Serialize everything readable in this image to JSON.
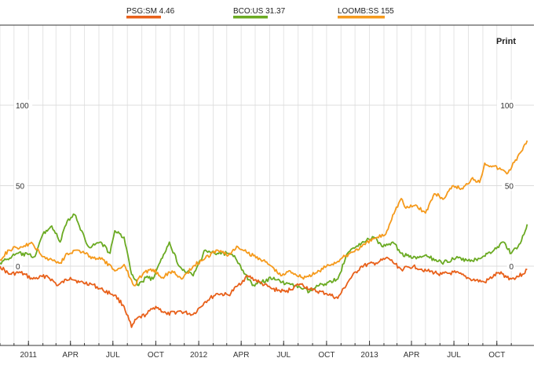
{
  "legend": [
    {
      "ticker": "PSG:SM",
      "value": "4.46",
      "color": "#e8601a"
    },
    {
      "ticker": "BCO:US",
      "value": "31.37",
      "color": "#6aaa22"
    },
    {
      "ticker": "LOOMB:SS",
      "value": "155",
      "color": "#f59a1c"
    }
  ],
  "print_label": "Print",
  "chart_data": {
    "type": "line",
    "ylim": [
      -50,
      140
    ],
    "y_ticks_left": [
      100,
      50,
      0
    ],
    "y_ticks_right": [
      100,
      50,
      0
    ],
    "x_ticks": [
      "2011",
      "APR",
      "JUL",
      "OCT",
      "2012",
      "APR",
      "JUL",
      "OCT",
      "2013",
      "APR",
      "JUL",
      "OCT"
    ],
    "grid": true,
    "x_start": "2010-11",
    "x_end": "2013-12",
    "series": [
      {
        "name": "PSG:SM",
        "color": "#e8601a",
        "points": [
          [
            "2010-11-01",
            0
          ],
          [
            "2010-11-20",
            -5
          ],
          [
            "2010-12-15",
            -4
          ],
          [
            "2011-01-10",
            -8
          ],
          [
            "2011-02-10",
            -6
          ],
          [
            "2011-03-05",
            -12
          ],
          [
            "2011-04-01",
            -7
          ],
          [
            "2011-04-20",
            -10
          ],
          [
            "2011-05-15",
            -11
          ],
          [
            "2011-06-10",
            -15
          ],
          [
            "2011-07-05",
            -18
          ],
          [
            "2011-07-25",
            -25
          ],
          [
            "2011-08-10",
            -38
          ],
          [
            "2011-08-20",
            -33
          ],
          [
            "2011-09-10",
            -30
          ],
          [
            "2011-10-01",
            -25
          ],
          [
            "2011-10-25",
            -30
          ],
          [
            "2011-11-20",
            -28
          ],
          [
            "2011-12-20",
            -30
          ],
          [
            "2012-01-15",
            -22
          ],
          [
            "2012-02-10",
            -17
          ],
          [
            "2012-03-05",
            -18
          ],
          [
            "2012-03-25",
            -12
          ],
          [
            "2012-04-15",
            -6
          ],
          [
            "2012-05-10",
            -10
          ],
          [
            "2012-06-05",
            -14
          ],
          [
            "2012-07-05",
            -16
          ],
          [
            "2012-08-05",
            -11
          ],
          [
            "2012-09-01",
            -15
          ],
          [
            "2012-10-01",
            -17
          ],
          [
            "2012-10-25",
            -20
          ],
          [
            "2012-11-20",
            -8
          ],
          [
            "2012-12-15",
            0
          ],
          [
            "2013-01-15",
            2
          ],
          [
            "2013-02-10",
            5
          ],
          [
            "2013-03-10",
            -2
          ],
          [
            "2013-04-05",
            0
          ],
          [
            "2013-05-05",
            -3
          ],
          [
            "2013-06-05",
            -5
          ],
          [
            "2013-07-05",
            -4
          ],
          [
            "2013-08-05",
            -8
          ],
          [
            "2013-09-05",
            -10
          ],
          [
            "2013-10-05",
            -4
          ],
          [
            "2013-11-01",
            -8
          ],
          [
            "2013-11-25",
            -5
          ],
          [
            "2013-12-05",
            -2
          ]
        ]
      },
      {
        "name": "BCO:US",
        "color": "#6aaa22",
        "points": [
          [
            "2010-11-01",
            2
          ],
          [
            "2010-12-10",
            8
          ],
          [
            "2011-01-15",
            6
          ],
          [
            "2011-02-01",
            20
          ],
          [
            "2011-02-20",
            25
          ],
          [
            "2011-03-10",
            15
          ],
          [
            "2011-03-25",
            28
          ],
          [
            "2011-04-10",
            32
          ],
          [
            "2011-04-20",
            25
          ],
          [
            "2011-05-10",
            12
          ],
          [
            "2011-06-05",
            15
          ],
          [
            "2011-06-25",
            8
          ],
          [
            "2011-07-05",
            22
          ],
          [
            "2011-07-25",
            18
          ],
          [
            "2011-08-10",
            -5
          ],
          [
            "2011-08-25",
            -12
          ],
          [
            "2011-09-10",
            -7
          ],
          [
            "2011-09-25",
            -8
          ],
          [
            "2011-10-15",
            5
          ],
          [
            "2011-10-30",
            15
          ],
          [
            "2011-11-20",
            0
          ],
          [
            "2011-12-20",
            -6
          ],
          [
            "2012-01-15",
            10
          ],
          [
            "2012-02-10",
            8
          ],
          [
            "2012-03-01",
            8
          ],
          [
            "2012-03-20",
            5
          ],
          [
            "2012-04-10",
            -5
          ],
          [
            "2012-04-25",
            -12
          ],
          [
            "2012-05-15",
            -10
          ],
          [
            "2012-06-10",
            -7
          ],
          [
            "2012-07-05",
            -11
          ],
          [
            "2012-08-05",
            -13
          ],
          [
            "2012-08-25",
            -16
          ],
          [
            "2012-09-15",
            -12
          ],
          [
            "2012-10-05",
            -10
          ],
          [
            "2012-10-25",
            -8
          ],
          [
            "2012-11-15",
            8
          ],
          [
            "2012-12-10",
            14
          ],
          [
            "2013-01-10",
            18
          ],
          [
            "2013-01-30",
            12
          ],
          [
            "2013-02-20",
            15
          ],
          [
            "2013-03-10",
            8
          ],
          [
            "2013-04-01",
            5
          ],
          [
            "2013-05-05",
            6
          ],
          [
            "2013-06-05",
            2
          ],
          [
            "2013-07-05",
            5
          ],
          [
            "2013-08-05",
            3
          ],
          [
            "2013-09-01",
            6
          ],
          [
            "2013-09-25",
            10
          ],
          [
            "2013-10-15",
            15
          ],
          [
            "2013-11-01",
            8
          ],
          [
            "2013-11-20",
            14
          ],
          [
            "2013-12-01",
            22
          ],
          [
            "2013-12-05",
            26
          ]
        ]
      },
      {
        "name": "LOOMB:SS",
        "color": "#f59a1c",
        "points": [
          [
            "2010-11-01",
            4
          ],
          [
            "2010-11-20",
            10
          ],
          [
            "2010-12-15",
            12
          ],
          [
            "2011-01-10",
            14
          ],
          [
            "2011-01-30",
            6
          ],
          [
            "2011-02-20",
            4
          ],
          [
            "2011-03-10",
            2
          ],
          [
            "2011-03-25",
            8
          ],
          [
            "2011-04-15",
            10
          ],
          [
            "2011-05-01",
            8
          ],
          [
            "2011-05-20",
            5
          ],
          [
            "2011-06-10",
            4
          ],
          [
            "2011-07-05",
            -3
          ],
          [
            "2011-07-25",
            1
          ],
          [
            "2011-08-15",
            -12
          ],
          [
            "2011-09-05",
            -4
          ],
          [
            "2011-09-25",
            -2
          ],
          [
            "2011-10-15",
            -7
          ],
          [
            "2011-11-05",
            -3
          ],
          [
            "2011-11-25",
            -8
          ],
          [
            "2011-12-20",
            0
          ],
          [
            "2012-01-15",
            5
          ],
          [
            "2012-02-10",
            10
          ],
          [
            "2012-03-05",
            7
          ],
          [
            "2012-03-25",
            12
          ],
          [
            "2012-04-15",
            8
          ],
          [
            "2012-05-10",
            5
          ],
          [
            "2012-06-05",
            0
          ],
          [
            "2012-06-25",
            -6
          ],
          [
            "2012-07-15",
            -3
          ],
          [
            "2012-08-10",
            -7
          ],
          [
            "2012-09-05",
            -5
          ],
          [
            "2012-10-01",
            0
          ],
          [
            "2012-10-25",
            3
          ],
          [
            "2012-11-20",
            8
          ],
          [
            "2012-12-15",
            12
          ],
          [
            "2013-01-10",
            17
          ],
          [
            "2013-02-05",
            20
          ],
          [
            "2013-02-20",
            32
          ],
          [
            "2013-03-10",
            42
          ],
          [
            "2013-03-20",
            36
          ],
          [
            "2013-04-10",
            38
          ],
          [
            "2013-05-01",
            33
          ],
          [
            "2013-05-20",
            45
          ],
          [
            "2013-06-10",
            42
          ],
          [
            "2013-06-30",
            50
          ],
          [
            "2013-07-20",
            48
          ],
          [
            "2013-08-10",
            55
          ],
          [
            "2013-08-25",
            52
          ],
          [
            "2013-09-05",
            64
          ],
          [
            "2013-09-25",
            62
          ],
          [
            "2013-10-10",
            60
          ],
          [
            "2013-10-25",
            58
          ],
          [
            "2013-11-10",
            66
          ],
          [
            "2013-11-25",
            72
          ],
          [
            "2013-12-05",
            78
          ]
        ]
      }
    ]
  }
}
